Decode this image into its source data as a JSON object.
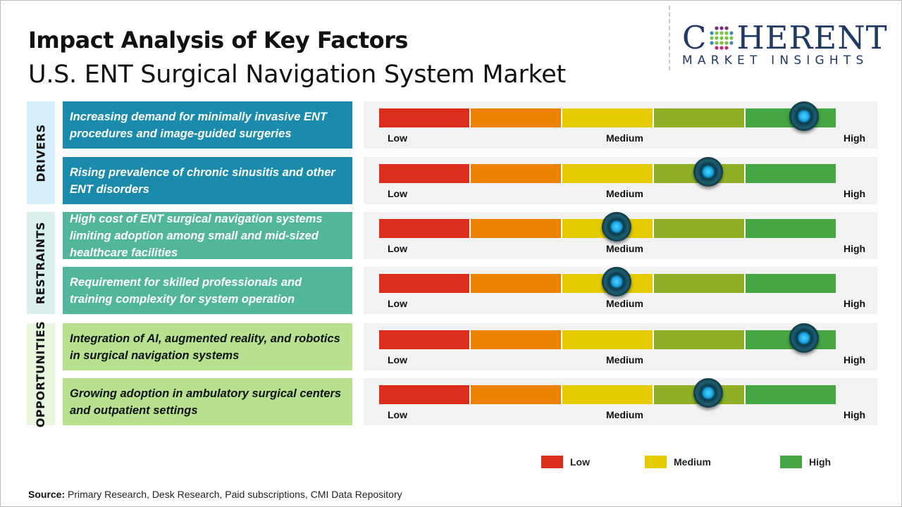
{
  "header": {
    "title": "Impact Analysis of Key Factors",
    "subtitle": "U.S. ENT Surgical Navigation System Market"
  },
  "logo": {
    "top_text": "COHERENT",
    "bottom_text": "MARKET INSIGHTS"
  },
  "scale": {
    "low": "Low",
    "medium": "Medium",
    "high": "High",
    "segment_colors": [
      "#dc2e1c",
      "#ec8300",
      "#e5cb00",
      "#8fb026",
      "#45a744"
    ],
    "knob_icon": "gauge-knob"
  },
  "categories": [
    {
      "label": "DRIVERS",
      "label_bg": "#d6eef9",
      "box_color": "#1a8aad",
      "text_color": "#ffffff",
      "factors": [
        {
          "text": "Increasing demand for minimally invasive ENT procedures and image-guided surgeries",
          "impact": 0.93
        },
        {
          "text": "Rising prevalence of chronic sinusitis and other ENT disorders",
          "impact": 0.72
        }
      ]
    },
    {
      "label": "RESTRAINTS",
      "label_bg": "#dcefed",
      "box_color": "#52b69a",
      "text_color": "#ffffff",
      "factors": [
        {
          "text": "High cost of ENT surgical navigation systems limiting adoption among small and mid-sized healthcare facilities",
          "impact": 0.52
        },
        {
          "text": "Requirement for skilled professionals and training complexity for system operation",
          "impact": 0.52
        }
      ]
    },
    {
      "label": "OPPORTUNITIES",
      "label_bg": "#e7f6dc",
      "box_color": "#b7e18f",
      "text_color": "#111111",
      "factors": [
        {
          "text": "Integration of AI, augmented reality, and robotics in surgical navigation systems",
          "impact": 0.93
        },
        {
          "text": "Growing adoption in ambulatory surgical centers and outpatient settings",
          "impact": 0.72
        }
      ]
    }
  ],
  "legend": [
    {
      "label": "Low",
      "color": "#dc2e1c"
    },
    {
      "label": "Medium",
      "color": "#e5cb00"
    },
    {
      "label": "High",
      "color": "#45a744"
    }
  ],
  "source": {
    "label": "Source:",
    "text": " Primary Research, Desk Research, Paid subscriptions, CMI Data Repository"
  }
}
